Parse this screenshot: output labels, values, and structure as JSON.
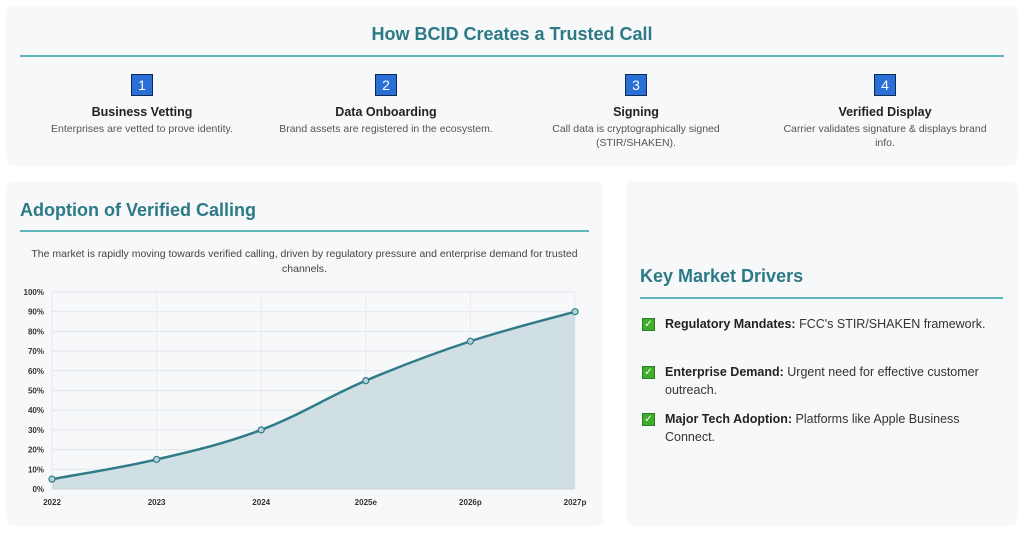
{
  "steps_section": {
    "title": "How BCID Creates a Trusted Call",
    "steps": [
      {
        "num": "1",
        "title": "Business Vetting",
        "desc": "Enterprises are vetted to prove identity."
      },
      {
        "num": "2",
        "title": "Data Onboarding",
        "desc": "Brand assets are registered in the ecosystem."
      },
      {
        "num": "3",
        "title": "Signing",
        "desc": "Call data is cryptographically signed (STIR/SHAKEN)."
      },
      {
        "num": "4",
        "title": "Verified Display",
        "desc": "Carrier validates signature & displays brand info."
      }
    ]
  },
  "adoption": {
    "title": "Adoption of Verified Calling",
    "description": "The market is rapidly moving towards verified calling, driven by regulatory pressure and enterprise demand for trusted channels."
  },
  "chart_data": {
    "type": "area",
    "categories": [
      "2022",
      "2023",
      "2024",
      "2025e",
      "2026p",
      "2027p"
    ],
    "values": [
      5,
      15,
      30,
      55,
      75,
      90
    ],
    "ylim": [
      0,
      100
    ],
    "yticks": [
      "0%",
      "10%",
      "20%",
      "30%",
      "40%",
      "50%",
      "60%",
      "70%",
      "80%",
      "90%",
      "100%"
    ],
    "grid": true,
    "legend": "none",
    "line_color": "#2f7c87",
    "fill_color": "#cfdfe3"
  },
  "drivers": {
    "title": "Key Market Drivers",
    "items": [
      {
        "label": "Regulatory Mandates:",
        "text": " FCC's STIR/SHAKEN framework."
      },
      {
        "label": "Enterprise Demand:",
        "text": " Urgent need for effective customer outreach."
      },
      {
        "label": "Major Tech Adoption:",
        "text": " Platforms like Apple Business Connect."
      }
    ]
  }
}
